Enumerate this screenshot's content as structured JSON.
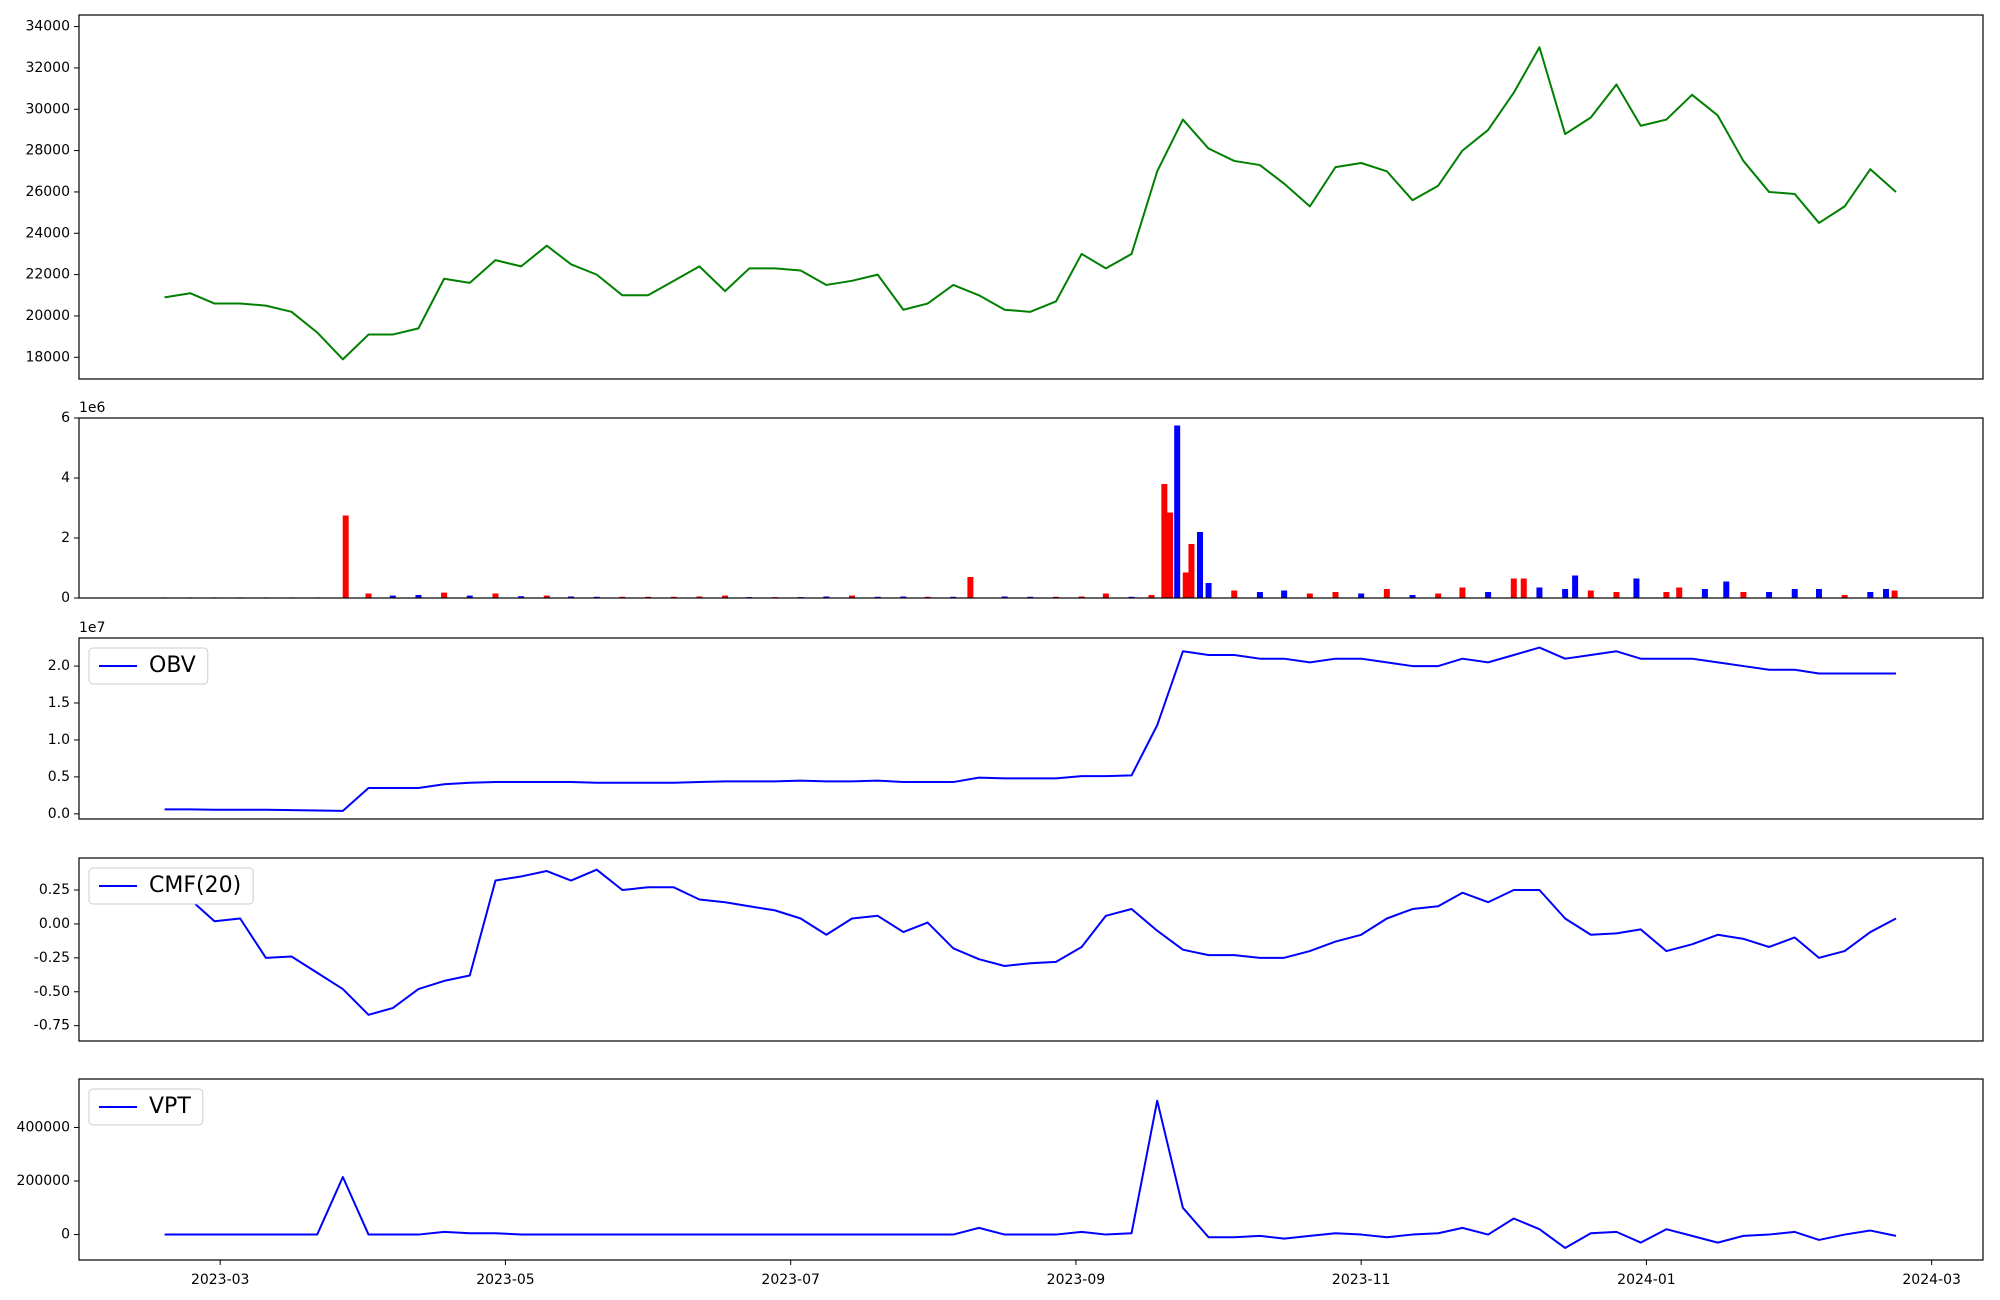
{
  "chart_data": [
    {
      "type": "line",
      "xlim": [
        2.01,
        15.36
      ],
      "ylim": [
        16950,
        34560
      ],
      "yticks": [
        18000,
        20000,
        22000,
        24000,
        26000,
        28000,
        30000,
        32000,
        34000
      ],
      "x": [
        2.61,
        2.79,
        2.96,
        3.14,
        3.32,
        3.5,
        3.68,
        3.86,
        4.04,
        4.21,
        4.39,
        4.57,
        4.75,
        4.93,
        5.11,
        5.29,
        5.46,
        5.64,
        5.82,
        6.0,
        6.18,
        6.36,
        6.54,
        6.71,
        6.89,
        7.07,
        7.25,
        7.43,
        7.61,
        7.79,
        7.96,
        8.14,
        8.32,
        8.5,
        8.68,
        8.86,
        9.04,
        9.21,
        9.39,
        9.57,
        9.75,
        9.93,
        10.11,
        10.29,
        10.46,
        10.64,
        10.82,
        11.0,
        11.18,
        11.36,
        11.54,
        11.71,
        11.89,
        12.07,
        12.25,
        12.43,
        12.61,
        12.79,
        12.96,
        13.14,
        13.32,
        13.5,
        13.68,
        13.86,
        14.04,
        14.21,
        14.39,
        14.57,
        14.75
      ],
      "series": [
        {
          "color": "green",
          "values": [
            20900,
            21100,
            20600,
            20600,
            20500,
            20200,
            19200,
            17900,
            19100,
            19100,
            19400,
            21800,
            21600,
            22700,
            22400,
            23400,
            22500,
            22000,
            21000,
            21000,
            21700,
            22400,
            21200,
            22300,
            22300,
            22200,
            21500,
            21700,
            22000,
            20300,
            20600,
            21500,
            21000,
            20300,
            20200,
            20700,
            23000,
            22300,
            23000,
            27000,
            29500,
            28100,
            27500,
            27300,
            26400,
            25300,
            27200,
            27400,
            27000,
            25600,
            26300,
            28000,
            29000,
            30800,
            33000,
            28800,
            29600,
            31200,
            29200,
            29500,
            30700,
            29700,
            27500,
            26000,
            25900,
            24500,
            25300,
            27100,
            26000
          ]
        }
      ]
    },
    {
      "type": "bar",
      "xlim": [
        2.01,
        15.36
      ],
      "ylim": [
        0,
        6000000
      ],
      "y_offset_label": "1e6",
      "yticks": [
        {
          "value": 0,
          "label": "0"
        },
        {
          "value": 2000000,
          "label": "2"
        },
        {
          "value": 4000000,
          "label": "4"
        },
        {
          "value": 6000000,
          "label": "6"
        }
      ],
      "x": [
        2.61,
        2.79,
        2.96,
        3.14,
        3.32,
        3.5,
        3.68,
        3.88,
        4.04,
        4.21,
        4.39,
        4.57,
        4.75,
        4.93,
        5.11,
        5.29,
        5.46,
        5.64,
        5.82,
        6.0,
        6.18,
        6.36,
        6.54,
        6.71,
        6.89,
        7.07,
        7.25,
        7.43,
        7.61,
        7.79,
        7.96,
        8.14,
        8.26,
        8.5,
        8.68,
        8.86,
        9.04,
        9.21,
        9.39,
        9.53,
        9.62,
        9.66,
        9.71,
        9.77,
        9.81,
        9.87,
        9.93,
        10.11,
        10.29,
        10.46,
        10.64,
        10.82,
        11.0,
        11.18,
        11.36,
        11.54,
        11.71,
        11.89,
        12.07,
        12.14,
        12.25,
        12.43,
        12.5,
        12.61,
        12.79,
        12.93,
        13.14,
        13.23,
        13.41,
        13.56,
        13.68,
        13.86,
        14.04,
        14.21,
        14.39,
        14.57,
        14.68,
        14.74
      ],
      "values": [
        20000,
        20000,
        20000,
        20000,
        20000,
        20000,
        20000,
        2750000,
        150000,
        80000,
        100000,
        180000,
        80000,
        150000,
        60000,
        80000,
        50000,
        40000,
        40000,
        40000,
        40000,
        50000,
        80000,
        30000,
        30000,
        30000,
        50000,
        80000,
        40000,
        50000,
        40000,
        40000,
        700000,
        50000,
        40000,
        40000,
        50000,
        150000,
        40000,
        100000,
        3800000,
        2850000,
        5750000,
        850000,
        1800000,
        2200000,
        500000,
        250000,
        200000,
        250000,
        150000,
        200000,
        150000,
        300000,
        100000,
        150000,
        350000,
        200000,
        650000,
        650000,
        350000,
        300000,
        750000,
        250000,
        200000,
        650000,
        200000,
        350000,
        300000,
        550000,
        200000,
        200000,
        300000,
        300000,
        100000,
        200000,
        300000,
        250000
      ],
      "colors": [
        "blue",
        "blue",
        "blue",
        "blue",
        "blue",
        "blue",
        "blue",
        "red",
        "red",
        "blue",
        "blue",
        "red",
        "blue",
        "red",
        "blue",
        "red",
        "blue",
        "blue",
        "red",
        "red",
        "red",
        "red",
        "red",
        "blue",
        "red",
        "blue",
        "blue",
        "red",
        "blue",
        "blue",
        "red",
        "blue",
        "red",
        "blue",
        "blue",
        "red",
        "red",
        "red",
        "blue",
        "red",
        "red",
        "red",
        "blue",
        "red",
        "red",
        "blue",
        "blue",
        "red",
        "blue",
        "blue",
        "red",
        "red",
        "blue",
        "red",
        "blue",
        "red",
        "red",
        "blue",
        "red",
        "red",
        "blue",
        "blue",
        "blue",
        "red",
        "red",
        "blue",
        "red",
        "red",
        "blue",
        "blue",
        "red",
        "blue",
        "blue",
        "blue",
        "red",
        "blue",
        "blue",
        "red"
      ]
    },
    {
      "type": "line",
      "xlim": [
        2.01,
        15.36
      ],
      "ylim": [
        -700000,
        23800000
      ],
      "y_offset_label": "1e7",
      "legend": "upper left",
      "yticks": [
        {
          "value": 0,
          "label": "0.0"
        },
        {
          "value": 5000000,
          "label": "0.5"
        },
        {
          "value": 10000000,
          "label": "1.0"
        },
        {
          "value": 15000000,
          "label": "1.5"
        },
        {
          "value": 20000000,
          "label": "2.0"
        }
      ],
      "x": [
        2.61,
        2.79,
        2.96,
        3.14,
        3.32,
        3.5,
        3.68,
        3.86,
        4.04,
        4.21,
        4.39,
        4.57,
        4.75,
        4.93,
        5.11,
        5.29,
        5.46,
        5.64,
        5.82,
        6.0,
        6.18,
        6.36,
        6.54,
        6.71,
        6.89,
        7.07,
        7.25,
        7.43,
        7.61,
        7.79,
        7.96,
        8.14,
        8.32,
        8.5,
        8.68,
        8.86,
        9.04,
        9.21,
        9.39,
        9.57,
        9.75,
        9.93,
        10.11,
        10.29,
        10.46,
        10.64,
        10.82,
        11.0,
        11.18,
        11.36,
        11.54,
        11.71,
        11.89,
        12.07,
        12.25,
        12.43,
        12.61,
        12.79,
        12.96,
        13.14,
        13.32,
        13.5,
        13.68,
        13.86,
        14.04,
        14.21,
        14.39,
        14.57,
        14.75
      ],
      "series": [
        {
          "name": "OBV",
          "color": "blue",
          "values": [
            600000,
            600000,
            550000,
            550000,
            550000,
            500000,
            450000,
            400000,
            3500000,
            3500000,
            3500000,
            4000000,
            4200000,
            4300000,
            4300000,
            4300000,
            4300000,
            4200000,
            4200000,
            4200000,
            4200000,
            4300000,
            4400000,
            4400000,
            4400000,
            4500000,
            4400000,
            4400000,
            4500000,
            4300000,
            4300000,
            4300000,
            4900000,
            4800000,
            4800000,
            4800000,
            5100000,
            5100000,
            5200000,
            12000000,
            22000000,
            21500000,
            21500000,
            21000000,
            21000000,
            20500000,
            21000000,
            21000000,
            20500000,
            20000000,
            20000000,
            21000000,
            20500000,
            21500000,
            22500000,
            21000000,
            21500000,
            22000000,
            21000000,
            21000000,
            21000000,
            20500000,
            20000000,
            19500000,
            19500000,
            19000000,
            19000000,
            19000000,
            19000000
          ]
        }
      ]
    },
    {
      "type": "line",
      "xlim": [
        2.01,
        15.36
      ],
      "ylim": [
        -0.863,
        0.486
      ],
      "legend": "upper left",
      "yticks": [
        {
          "value": -0.75,
          "label": "-0.75"
        },
        {
          "value": -0.5,
          "label": "-0.50"
        },
        -0.25,
        {
          "value": 0,
          "label": "0.00"
        },
        0.25
      ],
      "x": [
        2.61,
        2.79,
        2.96,
        3.14,
        3.32,
        3.5,
        3.68,
        3.86,
        4.04,
        4.21,
        4.39,
        4.57,
        4.75,
        4.93,
        5.11,
        5.29,
        5.46,
        5.64,
        5.82,
        6.0,
        6.18,
        6.36,
        6.54,
        6.71,
        6.89,
        7.07,
        7.25,
        7.43,
        7.61,
        7.79,
        7.96,
        8.14,
        8.32,
        8.5,
        8.68,
        8.86,
        9.04,
        9.21,
        9.39,
        9.57,
        9.75,
        9.93,
        10.11,
        10.29,
        10.46,
        10.64,
        10.82,
        11.0,
        11.18,
        11.36,
        11.54,
        11.71,
        11.89,
        12.07,
        12.25,
        12.43,
        12.61,
        12.79,
        12.96,
        13.14,
        13.32,
        13.5,
        13.68,
        13.86,
        14.04,
        14.21,
        14.39,
        14.57,
        14.75
      ],
      "series": [
        {
          "name": "CMF(20)",
          "color": "blue",
          "values": [
            0.18,
            0.18,
            0.02,
            0.04,
            -0.25,
            -0.24,
            -0.36,
            -0.48,
            -0.67,
            -0.62,
            -0.48,
            -0.42,
            -0.38,
            0.32,
            0.35,
            0.39,
            0.32,
            0.4,
            0.25,
            0.27,
            0.27,
            0.18,
            0.16,
            0.13,
            0.1,
            0.04,
            -0.08,
            0.04,
            0.06,
            -0.06,
            0.01,
            -0.18,
            -0.26,
            -0.31,
            -0.29,
            -0.28,
            -0.17,
            0.06,
            0.11,
            -0.05,
            -0.19,
            -0.23,
            -0.23,
            -0.25,
            -0.25,
            -0.2,
            -0.13,
            -0.08,
            0.04,
            0.11,
            0.13,
            0.23,
            0.16,
            0.25,
            0.25,
            0.04,
            -0.08,
            -0.07,
            -0.04,
            -0.2,
            -0.15,
            -0.08,
            -0.11,
            -0.17,
            -0.1,
            -0.25,
            -0.2,
            -0.06,
            0.04
          ]
        }
      ]
    },
    {
      "type": "line",
      "xlim": [
        2.01,
        15.36
      ],
      "ylim": [
        -95000,
        581000
      ],
      "legend": "upper left",
      "yticks": [
        0,
        200000,
        400000
      ],
      "xticks": [
        {
          "value": 3,
          "label": "2023-03"
        },
        {
          "value": 5,
          "label": "2023-05"
        },
        {
          "value": 7,
          "label": "2023-07"
        },
        {
          "value": 9,
          "label": "2023-09"
        },
        {
          "value": 11,
          "label": "2023-11"
        },
        {
          "value": 13,
          "label": "2024-01"
        },
        {
          "value": 15,
          "label": "2024-03"
        }
      ],
      "x": [
        2.61,
        2.79,
        2.96,
        3.14,
        3.32,
        3.5,
        3.68,
        3.86,
        4.04,
        4.21,
        4.39,
        4.57,
        4.75,
        4.93,
        5.11,
        5.29,
        5.46,
        5.64,
        5.82,
        6.0,
        6.18,
        6.36,
        6.54,
        6.71,
        6.89,
        7.07,
        7.25,
        7.43,
        7.61,
        7.79,
        7.96,
        8.14,
        8.32,
        8.5,
        8.68,
        8.86,
        9.04,
        9.21,
        9.39,
        9.57,
        9.75,
        9.93,
        10.11,
        10.29,
        10.46,
        10.64,
        10.82,
        11.0,
        11.18,
        11.36,
        11.54,
        11.71,
        11.89,
        12.07,
        12.25,
        12.43,
        12.61,
        12.79,
        12.96,
        13.14,
        13.32,
        13.5,
        13.68,
        13.86,
        14.04,
        14.21,
        14.39,
        14.57,
        14.75
      ],
      "series": [
        {
          "name": "VPT",
          "color": "blue",
          "values": [
            0,
            0,
            0,
            0,
            0,
            0,
            0,
            215000,
            0,
            0,
            0,
            10000,
            5000,
            5000,
            0,
            0,
            0,
            0,
            0,
            0,
            0,
            0,
            0,
            0,
            0,
            0,
            0,
            0,
            0,
            0,
            0,
            0,
            25000,
            0,
            0,
            0,
            10000,
            0,
            5000,
            500000,
            100000,
            -10000,
            -10000,
            -5000,
            -15000,
            -5000,
            5000,
            0,
            -10000,
            0,
            5000,
            25000,
            0,
            60000,
            20000,
            -50000,
            5000,
            10000,
            -30000,
            20000,
            -5000,
            -30000,
            -5000,
            0,
            10000,
            -20000,
            0,
            15000,
            -5000
          ]
        }
      ]
    }
  ]
}
